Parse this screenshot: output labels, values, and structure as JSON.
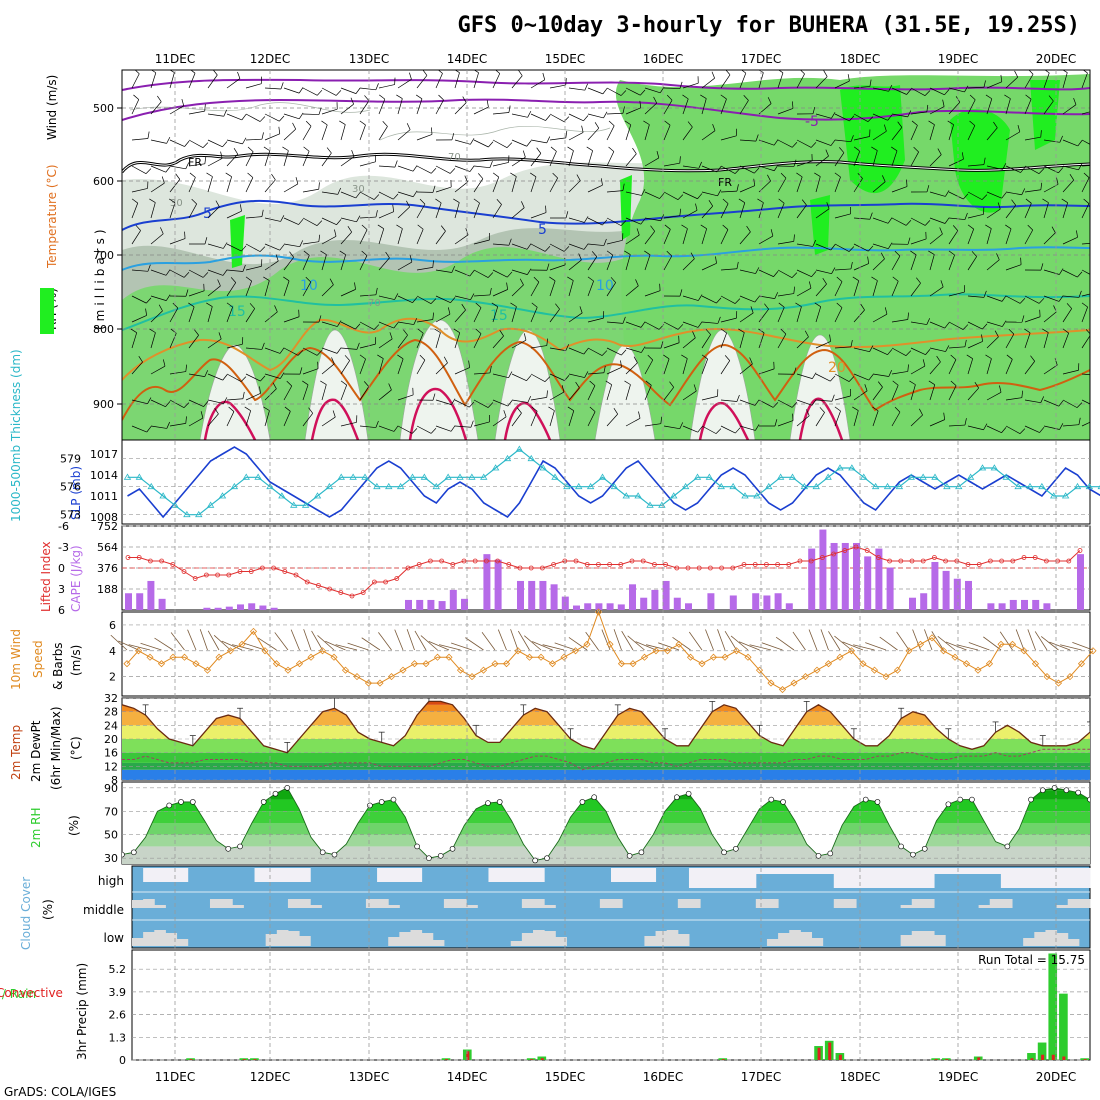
{
  "header": {
    "title": "GFS 0~10day 3-hourly for BUHERA (31.5E, 19.25S)",
    "footer": "GrADS: COLA/IGES"
  },
  "colors": {
    "wind_barb": "#000000",
    "temp_line": "#8a1fb0",
    "rh_light": "#dde6dd",
    "rh_mid": "#b3c4b3",
    "rh_green": "#76d86a",
    "rh_bright": "#20ee20",
    "slp": "#1a3fd0",
    "thickness": "#2bb8c8",
    "lifted_index": "#e03030",
    "cape": "#b66ae8",
    "wind10": "#e08a20",
    "rain": "#2ecc2e",
    "convective": "#e02020",
    "cloud_fill": "#6aaed8",
    "cloud_clear": "#f2f0f6"
  },
  "dates": [
    "11DEC",
    "12DEC",
    "13DEC",
    "14DEC",
    "15DEC",
    "16DEC",
    "17DEC",
    "18DEC",
    "19DEC",
    "20DEC"
  ],
  "panels": {
    "upper_air": {
      "label_wind": "Wind (m/s)",
      "label_temp": "Temperature (°C)",
      "label_rh": "RH (%)",
      "label_mb": "(millibars)",
      "levels": [
        "500",
        "600",
        "700",
        "800",
        "900"
      ],
      "contour_labels": [
        "FR",
        "FR",
        "-5",
        "-5",
        "5",
        "10",
        "10",
        "15",
        "15",
        "20",
        "30",
        "30",
        "70",
        "70"
      ]
    },
    "slp_thickness": {
      "label_thick": "1000-500mb Thickness (dm)",
      "label_slp": "SLP (mb)",
      "left_ticks": [
        "573",
        "576",
        "579"
      ],
      "right_ticks": [
        "1008",
        "1011",
        "1014",
        "1017"
      ]
    },
    "cape_li": {
      "label_li": "Lifted Index",
      "label_cape": "CAPE (J/kg)",
      "left_ticks": [
        "6",
        "3",
        "0",
        "-3",
        "-6"
      ],
      "right_ticks": [
        "188",
        "376",
        "564",
        "752"
      ]
    },
    "wind10": {
      "label1": "10m Wind",
      "label2": "Speed",
      "label3": "& Barbs",
      "label4": "(m/s)",
      "ticks": [
        "2",
        "4",
        "6"
      ]
    },
    "temp2m": {
      "label1": "2m Temp",
      "label2": "2m DewPt",
      "label3": "(6hr Min/Max)",
      "label4": "(°C)",
      "ticks": [
        "8",
        "12",
        "16",
        "20",
        "24",
        "28",
        "32"
      ]
    },
    "rh2m": {
      "label1": "2m RH",
      "label2": "(%)",
      "ticks": [
        "30",
        "50",
        "70",
        "90"
      ]
    },
    "cloud": {
      "label1": "Cloud Cover",
      "label2": "(%)",
      "levels": [
        "high",
        "middle",
        "low"
      ]
    },
    "precip": {
      "label1": "Total / Rain",
      "label2": "Convective",
      "label3": "3hr Precip (mm)",
      "run_total": "Run Total = 15.75",
      "ticks": [
        "0",
        "1.3",
        "2.6",
        "3.9",
        "5.2"
      ]
    }
  },
  "chart_data": [
    {
      "type": "line",
      "panel": "slp_thickness",
      "x_unit": "3-hourly steps from 10DEC 12Z",
      "ylim_left": [
        572,
        581
      ],
      "ylim_right": [
        1007,
        1019
      ],
      "series": [
        {
          "name": "SLP (mb)",
          "axis": "right",
          "values": [
            1011,
            1012,
            1010,
            1008,
            1010,
            1012,
            1014,
            1016,
            1017,
            1018,
            1017,
            1015,
            1013,
            1012,
            1011,
            1010,
            1009,
            1008,
            1009,
            1011,
            1013,
            1015,
            1016,
            1015,
            1013,
            1011,
            1010,
            1012,
            1013,
            1012,
            1010,
            1009,
            1008,
            1010,
            1013,
            1016,
            1015,
            1013,
            1011,
            1010,
            1011,
            1013,
            1015,
            1016,
            1014,
            1012,
            1010,
            1009,
            1010,
            1012,
            1014,
            1015,
            1014,
            1012,
            1010,
            1009,
            1010,
            1012,
            1014,
            1015,
            1014,
            1012,
            1010,
            1009,
            1011,
            1013,
            1014,
            1013,
            1012,
            1013,
            1014,
            1013,
            1012,
            1013,
            1014,
            1013,
            1012,
            1011,
            1013,
            1015,
            1014,
            1012,
            1011
          ]
        },
        {
          "name": "1000-500mb Thickness (dm)",
          "axis": "left",
          "values": [
            577,
            577,
            576,
            575,
            574,
            573,
            573,
            574,
            575,
            576,
            577,
            577,
            576,
            575,
            574,
            574,
            575,
            576,
            577,
            577,
            577,
            576,
            576,
            576,
            577,
            577,
            576,
            577,
            577,
            577,
            577,
            578,
            579,
            580,
            579,
            578,
            577,
            576,
            576,
            576,
            577,
            576,
            575,
            575,
            574,
            574,
            575,
            576,
            577,
            577,
            576,
            576,
            575,
            575,
            576,
            577,
            577,
            576,
            576,
            577,
            578,
            578,
            577,
            576,
            576,
            576,
            577,
            577,
            577,
            576,
            576,
            577,
            578,
            578,
            577,
            576,
            576,
            576,
            575,
            575,
            576,
            576,
            576
          ]
        }
      ]
    },
    {
      "type": "bar",
      "panel": "cape_li",
      "ylim_cape": [
        0,
        752
      ],
      "ylim_li": [
        6,
        -6
      ],
      "series": [
        {
          "name": "CAPE (J/kg)",
          "values": [
            150,
            150,
            260,
            100,
            0,
            0,
            0,
            20,
            20,
            30,
            50,
            60,
            40,
            20,
            0,
            0,
            0,
            0,
            0,
            0,
            0,
            0,
            0,
            0,
            0,
            90,
            90,
            90,
            80,
            180,
            100,
            0,
            500,
            450,
            0,
            260,
            260,
            260,
            230,
            120,
            40,
            60,
            60,
            60,
            50,
            230,
            110,
            180,
            260,
            110,
            60,
            0,
            150,
            0,
            130,
            0,
            150,
            130,
            150,
            60,
            0,
            550,
            720,
            600,
            600,
            600,
            480,
            550,
            380,
            0,
            110,
            150,
            430,
            350,
            280,
            260,
            0,
            60,
            60,
            90,
            90,
            90,
            60,
            0,
            0,
            500
          ]
        },
        {
          "name": "Lifted Index",
          "values": [
            -1.5,
            -1.5,
            -1,
            -1,
            -0.5,
            0.5,
            1.5,
            1,
            1,
            1,
            0.5,
            0.5,
            0,
            0,
            0.5,
            1,
            2,
            2.5,
            3,
            3.5,
            4,
            3.5,
            2,
            2,
            1.5,
            0,
            -0.5,
            -1,
            -1,
            -0.5,
            -1,
            -1,
            -1,
            -1,
            -0.5,
            0,
            0,
            0,
            -0.5,
            -1,
            -1,
            -0.5,
            -0.5,
            -0.5,
            -0.5,
            -1,
            -1,
            -0.5,
            -0.5,
            0,
            0,
            0,
            0,
            0,
            0,
            -0.5,
            -0.5,
            -0.5,
            -0.5,
            -0.5,
            -1,
            -1,
            -1.5,
            -2,
            -2.5,
            -3,
            -2.5,
            -1.5,
            -1,
            -1,
            -1,
            -1,
            -1.5,
            -1,
            -1,
            -0.5,
            -0.5,
            -1,
            -1,
            -1,
            -1.5,
            -1.5,
            -1,
            -1,
            -1,
            -2.5
          ]
        }
      ]
    },
    {
      "type": "line",
      "panel": "wind10",
      "ylim": [
        0.5,
        7
      ],
      "series": [
        {
          "name": "10m Wind Speed (m/s)",
          "values": [
            3,
            4,
            3.5,
            3,
            3.5,
            3.5,
            3,
            2.5,
            3.5,
            4,
            4.5,
            5.5,
            4,
            3,
            2.5,
            3,
            3.5,
            4,
            3.5,
            2.5,
            2,
            1.5,
            1.5,
            2,
            2.5,
            3,
            3,
            3.5,
            3.5,
            2.5,
            2,
            2.5,
            3,
            3,
            4,
            3.5,
            3.5,
            3,
            3.5,
            4,
            4.5,
            7,
            4.5,
            3,
            3,
            3.5,
            4,
            4,
            4.5,
            3.5,
            3,
            3.5,
            3.5,
            4,
            3.5,
            2.5,
            1.5,
            1,
            1.5,
            2,
            2.5,
            3,
            3.5,
            4,
            3,
            2.5,
            2,
            2.5,
            4,
            4.5,
            5,
            4,
            3.5,
            3,
            2.5,
            3,
            4.5,
            4.5,
            4,
            3,
            2,
            1.5,
            2,
            3,
            4
          ]
        }
      ]
    },
    {
      "type": "area",
      "panel": "temp2m",
      "ylim": [
        8,
        32
      ],
      "series": [
        {
          "name": "2m Temp (°C)",
          "values": [
            30,
            29,
            27,
            23,
            20,
            19,
            18,
            22,
            26,
            27,
            26,
            22,
            18,
            17,
            16,
            20,
            24,
            28,
            29,
            27,
            22,
            20,
            19,
            18,
            21,
            27,
            31,
            31,
            30,
            26,
            21,
            19,
            19,
            23,
            27,
            29,
            28,
            24,
            20,
            18,
            17,
            22,
            27,
            29,
            28,
            24,
            20,
            18,
            18,
            23,
            28,
            30,
            29,
            25,
            21,
            19,
            18,
            23,
            28,
            30,
            28,
            24,
            20,
            18,
            18,
            21,
            26,
            28,
            27,
            23,
            20,
            18,
            17,
            18,
            22,
            24,
            22,
            19,
            18,
            18,
            18,
            19,
            22
          ]
        },
        {
          "name": "2m DewPt (°C)",
          "values": [
            14,
            14,
            15,
            14,
            13,
            13,
            13,
            14,
            14,
            14,
            14,
            13,
            13,
            13,
            12,
            12,
            12,
            12,
            13,
            13,
            13,
            13,
            12,
            12,
            12,
            12,
            12,
            13,
            14,
            14,
            13,
            12,
            12,
            13,
            14,
            15,
            15,
            14,
            13,
            11,
            12,
            13,
            14,
            14,
            14,
            13,
            13,
            12,
            13,
            14,
            14,
            14,
            13,
            13,
            13,
            13,
            13,
            14,
            14,
            15,
            15,
            14,
            14,
            14,
            15,
            15,
            16,
            16,
            15,
            14,
            14,
            15,
            15,
            15,
            16,
            15,
            15,
            16,
            17,
            17,
            17,
            17,
            17
          ]
        }
      ]
    },
    {
      "type": "area",
      "panel": "rh2m",
      "ylim": [
        25,
        95
      ],
      "series": [
        {
          "name": "2m RH (%)",
          "values": [
            33,
            35,
            48,
            70,
            75,
            78,
            78,
            62,
            45,
            38,
            40,
            60,
            78,
            85,
            90,
            72,
            48,
            35,
            33,
            42,
            60,
            75,
            78,
            80,
            65,
            40,
            30,
            32,
            38,
            58,
            72,
            77,
            78,
            62,
            42,
            28,
            30,
            45,
            65,
            78,
            82,
            70,
            48,
            32,
            35,
            50,
            70,
            82,
            85,
            72,
            50,
            35,
            38,
            55,
            72,
            80,
            78,
            62,
            42,
            32,
            34,
            58,
            74,
            80,
            78,
            58,
            40,
            33,
            38,
            62,
            76,
            80,
            80,
            62,
            44,
            40,
            55,
            80,
            88,
            90,
            88,
            86,
            80
          ]
        }
      ]
    },
    {
      "type": "bar",
      "panel": "precip",
      "ylim": [
        0,
        6.3
      ],
      "series": [
        {
          "name": "Total / Rain (mm)",
          "values": [
            0,
            0,
            0,
            0,
            0,
            0.1,
            0,
            0,
            0,
            0,
            0.1,
            0.1,
            0,
            0,
            0,
            0,
            0,
            0,
            0,
            0,
            0,
            0,
            0,
            0,
            0,
            0,
            0,
            0,
            0,
            0.1,
            0,
            0.6,
            0,
            0,
            0,
            0,
            0,
            0.1,
            0.2,
            0,
            0,
            0,
            0,
            0,
            0,
            0,
            0,
            0,
            0,
            0,
            0,
            0,
            0,
            0,
            0,
            0.1,
            0,
            0,
            0,
            0,
            0,
            0,
            0,
            0,
            0.8,
            1.1,
            0.4,
            0,
            0,
            0,
            0,
            0,
            0,
            0,
            0,
            0.1,
            0.1,
            0,
            0,
            0.2,
            0,
            0,
            0,
            0,
            0.4,
            1.0,
            6.1,
            3.8,
            0,
            0.1
          ]
        },
        {
          "name": "Convective (mm)",
          "values": [
            0,
            0,
            0,
            0,
            0,
            0.05,
            0,
            0,
            0,
            0,
            0.05,
            0.05,
            0,
            0,
            0,
            0,
            0,
            0,
            0,
            0,
            0,
            0,
            0,
            0,
            0,
            0,
            0,
            0,
            0,
            0.05,
            0,
            0.5,
            0,
            0,
            0,
            0,
            0,
            0.05,
            0.1,
            0,
            0,
            0,
            0,
            0,
            0,
            0,
            0,
            0,
            0,
            0,
            0,
            0,
            0,
            0,
            0,
            0.05,
            0,
            0,
            0,
            0,
            0,
            0,
            0,
            0,
            0.7,
            1.0,
            0.3,
            0,
            0,
            0,
            0,
            0,
            0,
            0,
            0,
            0.05,
            0.05,
            0,
            0,
            0.15,
            0,
            0,
            0,
            0,
            0.1,
            0.3,
            0.3,
            0.2,
            0,
            0.05
          ]
        }
      ]
    }
  ]
}
